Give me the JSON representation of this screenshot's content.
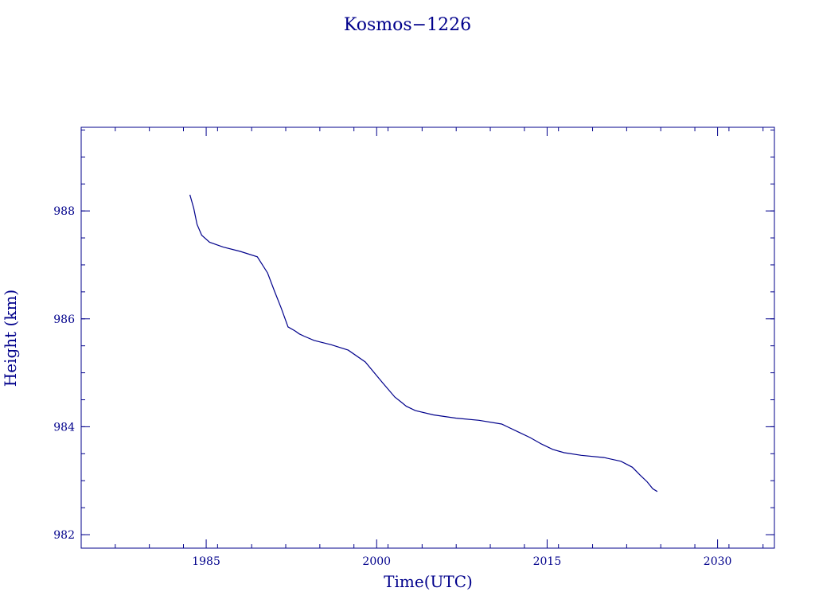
{
  "chart_data": {
    "type": "line",
    "title": "Kosmos−1226",
    "xlabel": "Time(UTC)",
    "ylabel": "Height (km)",
    "xlim": [
      1974,
      2035
    ],
    "ylim": [
      981.75,
      989.55
    ],
    "x_ticks": [
      1985,
      2000,
      2015,
      2030
    ],
    "y_ticks": [
      982,
      984,
      986,
      988
    ],
    "x_minor_step": 3,
    "y_minor_step": 0.5,
    "grid": false,
    "line_color": "#00008b",
    "series": [
      {
        "x": [
          1983.57,
          1983.9,
          1984.2,
          1984.6,
          1985.3,
          1986.5,
          1988.0,
          1989.5,
          1990.4,
          1991.0,
          1991.6,
          1992.2,
          1992.8,
          1993.2,
          1993.6,
          1994.5,
          1996.0,
          1997.5,
          1999.0,
          2000.5,
          2001.6,
          2002.2,
          2002.6,
          2003.4,
          2005.0,
          2007.0,
          2009.0,
          2011.0,
          2012.5,
          2013.5,
          2014.5,
          2015.5,
          2016.5,
          2018.0,
          2020.0,
          2021.5,
          2022.5,
          2023.2,
          2023.8,
          2024.3,
          2024.7
        ],
        "y": [
          988.3,
          988.05,
          987.75,
          987.55,
          987.42,
          987.33,
          987.25,
          987.15,
          986.85,
          986.52,
          986.2,
          985.85,
          985.78,
          985.72,
          985.68,
          985.6,
          985.52,
          985.42,
          985.2,
          984.82,
          984.55,
          984.45,
          984.38,
          984.3,
          984.22,
          984.16,
          984.12,
          984.05,
          983.9,
          983.8,
          983.68,
          983.58,
          983.52,
          983.47,
          983.43,
          983.36,
          983.25,
          983.1,
          982.98,
          982.85,
          982.8
        ]
      }
    ]
  }
}
